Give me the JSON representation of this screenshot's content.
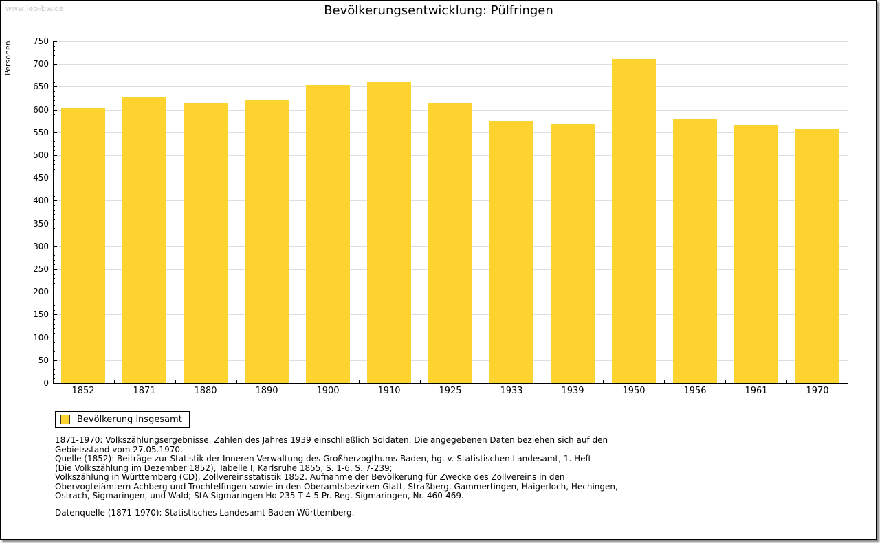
{
  "watermark": "www.leo-bw.de",
  "chart_data": {
    "type": "bar",
    "title": "Bevölkerungsentwicklung: Pülfringen",
    "xlabel": "",
    "ylabel": "Personen",
    "categories": [
      "1852",
      "1871",
      "1880",
      "1890",
      "1900",
      "1910",
      "1925",
      "1933",
      "1939",
      "1950",
      "1956",
      "1961",
      "1970"
    ],
    "series": [
      {
        "name": "Bevölkerung insgesamt",
        "values": [
          602,
          628,
          615,
          621,
          654,
          659,
          614,
          576,
          570,
          711,
          579,
          566,
          557
        ]
      }
    ],
    "ylim": [
      0,
      750
    ],
    "ytick_step": 50,
    "y_minor_tick_step": 10,
    "grid": true,
    "legend_position": "bottom-left",
    "bar_color": "#fcd32f",
    "gridline_color": "#dedede"
  },
  "legend": {
    "label": "Bevölkerung insgesamt",
    "swatch_color": "#fcd32f"
  },
  "footnotes": {
    "lines": [
      "1871-1970: Volkszählungsergebnisse. Zahlen des Jahres 1939 einschließlich Soldaten. Die angegebenen Daten beziehen sich auf den",
      "Gebietsstand vom 27.05.1970.",
      "Quelle (1852): Beiträge zur Statistik der Inneren Verwaltung des Großherzogthums Baden, hg. v. Statistischen Landesamt, 1. Heft",
      "(Die Volkszählung im Dezember 1852), Tabelle I, Karlsruhe 1855, S. 1-6, S. 7-239;",
      "Volkszählung in Württemberg (CD), Zollvereinsstatistik 1852. Aufnahme der Bevölkerung für Zwecke des Zollvereins in den",
      "Obervogteiämtern Achberg und Trochtelfingen sowie in den Oberamtsbezirken Glatt, Straßberg, Gammertingen, Haigerloch, Hechingen,",
      "Ostrach, Sigmaringen, und Wald; StA Sigmaringen Ho 235 T 4-5 Pr. Reg. Sigmaringen, Nr. 460-469."
    ],
    "datasource": "Datenquelle (1871-1970): Statistisches Landesamt Baden-Württemberg."
  }
}
